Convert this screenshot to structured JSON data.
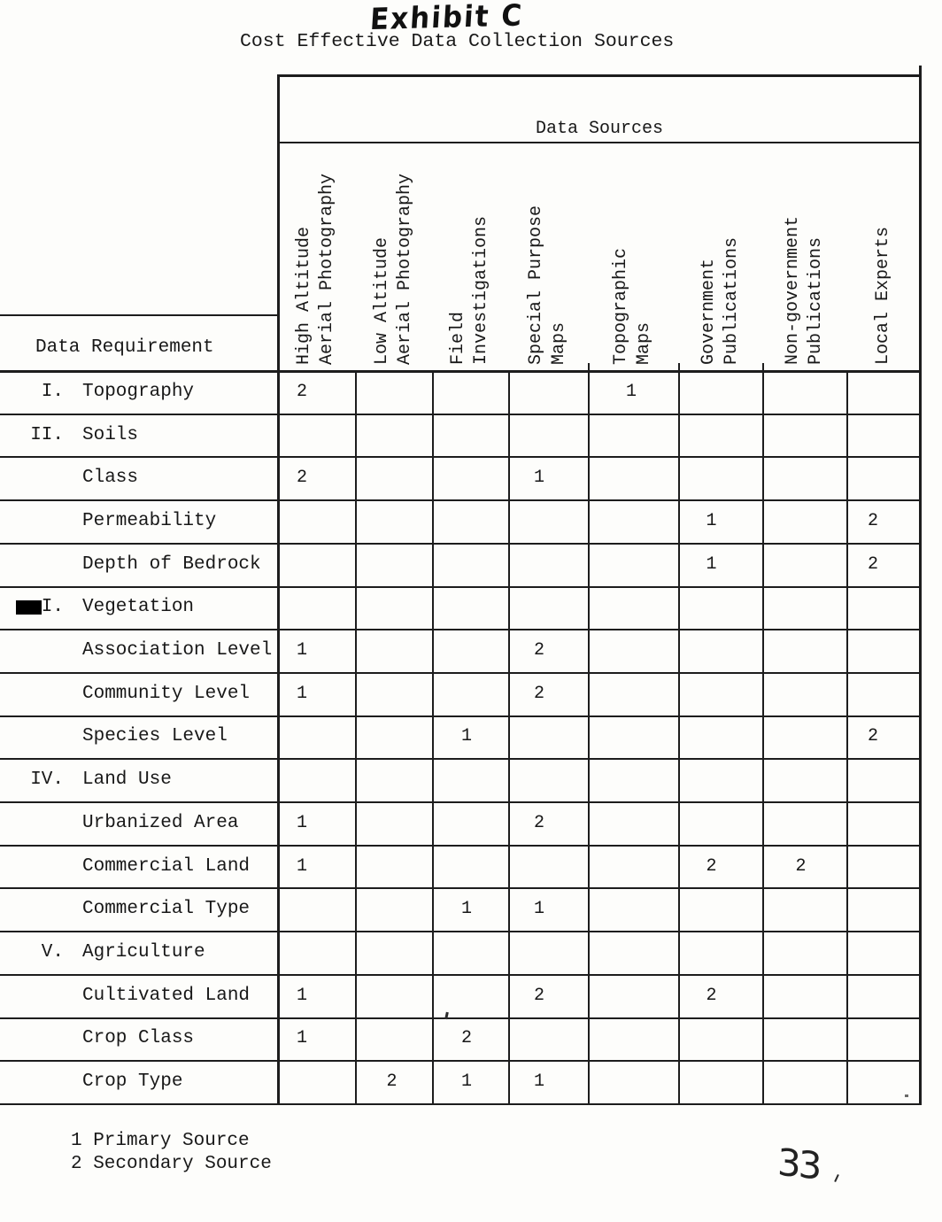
{
  "page": {
    "exhibit_title": "Exhibit C",
    "subtitle": "Cost Effective Data Collection Sources",
    "page_number": "33"
  },
  "table": {
    "sources_header": "Data Sources",
    "row_header": "Data Requirement",
    "columns": [
      "High Altitude\nAerial Photography",
      "Low Altitude\nAerial Photography",
      "Field\nInvestigations",
      "Special Purpose\nMaps",
      "Topographic\nMaps",
      "Government\nPublications",
      "Non-government\nPublications",
      "Local Experts"
    ],
    "rows": [
      {
        "numeral": "I.",
        "label": "Topography",
        "level": "section",
        "redacted": false,
        "values": [
          "2",
          "",
          "",
          "",
          "1",
          "",
          "",
          ""
        ]
      },
      {
        "numeral": "II.",
        "label": "Soils",
        "level": "section",
        "redacted": false,
        "values": [
          "",
          "",
          "",
          "",
          "",
          "",
          "",
          ""
        ]
      },
      {
        "numeral": "",
        "label": "Class",
        "level": "item",
        "redacted": false,
        "values": [
          "2",
          "",
          "",
          "1",
          "",
          "",
          "",
          ""
        ]
      },
      {
        "numeral": "",
        "label": "Permeability",
        "level": "item",
        "redacted": false,
        "values": [
          "",
          "",
          "",
          "",
          "",
          "1",
          "",
          "2"
        ]
      },
      {
        "numeral": "",
        "label": "Depth of Bedrock",
        "level": "item",
        "redacted": false,
        "values": [
          "",
          "",
          "",
          "",
          "",
          "1",
          "",
          "2"
        ]
      },
      {
        "numeral": "I.",
        "label": "Vegetation",
        "level": "section",
        "redacted": true,
        "values": [
          "",
          "",
          "",
          "",
          "",
          "",
          "",
          ""
        ]
      },
      {
        "numeral": "",
        "label": "Association Level",
        "level": "item",
        "redacted": false,
        "values": [
          "1",
          "",
          "",
          "2",
          "",
          "",
          "",
          ""
        ]
      },
      {
        "numeral": "",
        "label": "Community Level",
        "level": "item",
        "redacted": false,
        "values": [
          "1",
          "",
          "",
          "2",
          "",
          "",
          "",
          ""
        ]
      },
      {
        "numeral": "",
        "label": "Species Level",
        "level": "item",
        "redacted": false,
        "values": [
          "",
          "",
          "1",
          "",
          "",
          "",
          "",
          "2"
        ]
      },
      {
        "numeral": "IV.",
        "label": "Land Use",
        "level": "section",
        "redacted": false,
        "values": [
          "",
          "",
          "",
          "",
          "",
          "",
          "",
          ""
        ]
      },
      {
        "numeral": "",
        "label": "Urbanized Area",
        "level": "item",
        "redacted": false,
        "values": [
          "1",
          "",
          "",
          "2",
          "",
          "",
          "",
          ""
        ]
      },
      {
        "numeral": "",
        "label": "Commercial Land",
        "level": "item",
        "redacted": false,
        "values": [
          "1",
          "",
          "",
          "",
          "",
          "2",
          "2",
          ""
        ]
      },
      {
        "numeral": "",
        "label": "Commercial Type",
        "level": "item",
        "redacted": false,
        "values": [
          "",
          "",
          "1",
          "1",
          "",
          "",
          "",
          ""
        ]
      },
      {
        "numeral": "V.",
        "label": "Agriculture",
        "level": "section",
        "redacted": false,
        "values": [
          "",
          "",
          "",
          "",
          "",
          "",
          "",
          ""
        ]
      },
      {
        "numeral": "",
        "label": "Cultivated Land",
        "level": "item",
        "redacted": false,
        "values": [
          "1",
          "",
          "",
          "2",
          "",
          "2",
          "",
          ""
        ]
      },
      {
        "numeral": "",
        "label": "Crop Class",
        "level": "item",
        "redacted": false,
        "values": [
          "1",
          "",
          "2",
          "",
          "",
          "",
          "",
          ""
        ]
      },
      {
        "numeral": "",
        "label": "Crop Type",
        "level": "item",
        "redacted": false,
        "values": [
          "",
          "2",
          "1",
          "1",
          "",
          "",
          "",
          ""
        ]
      }
    ],
    "legend": [
      "1 Primary Source",
      "2 Secondary Source"
    ]
  }
}
